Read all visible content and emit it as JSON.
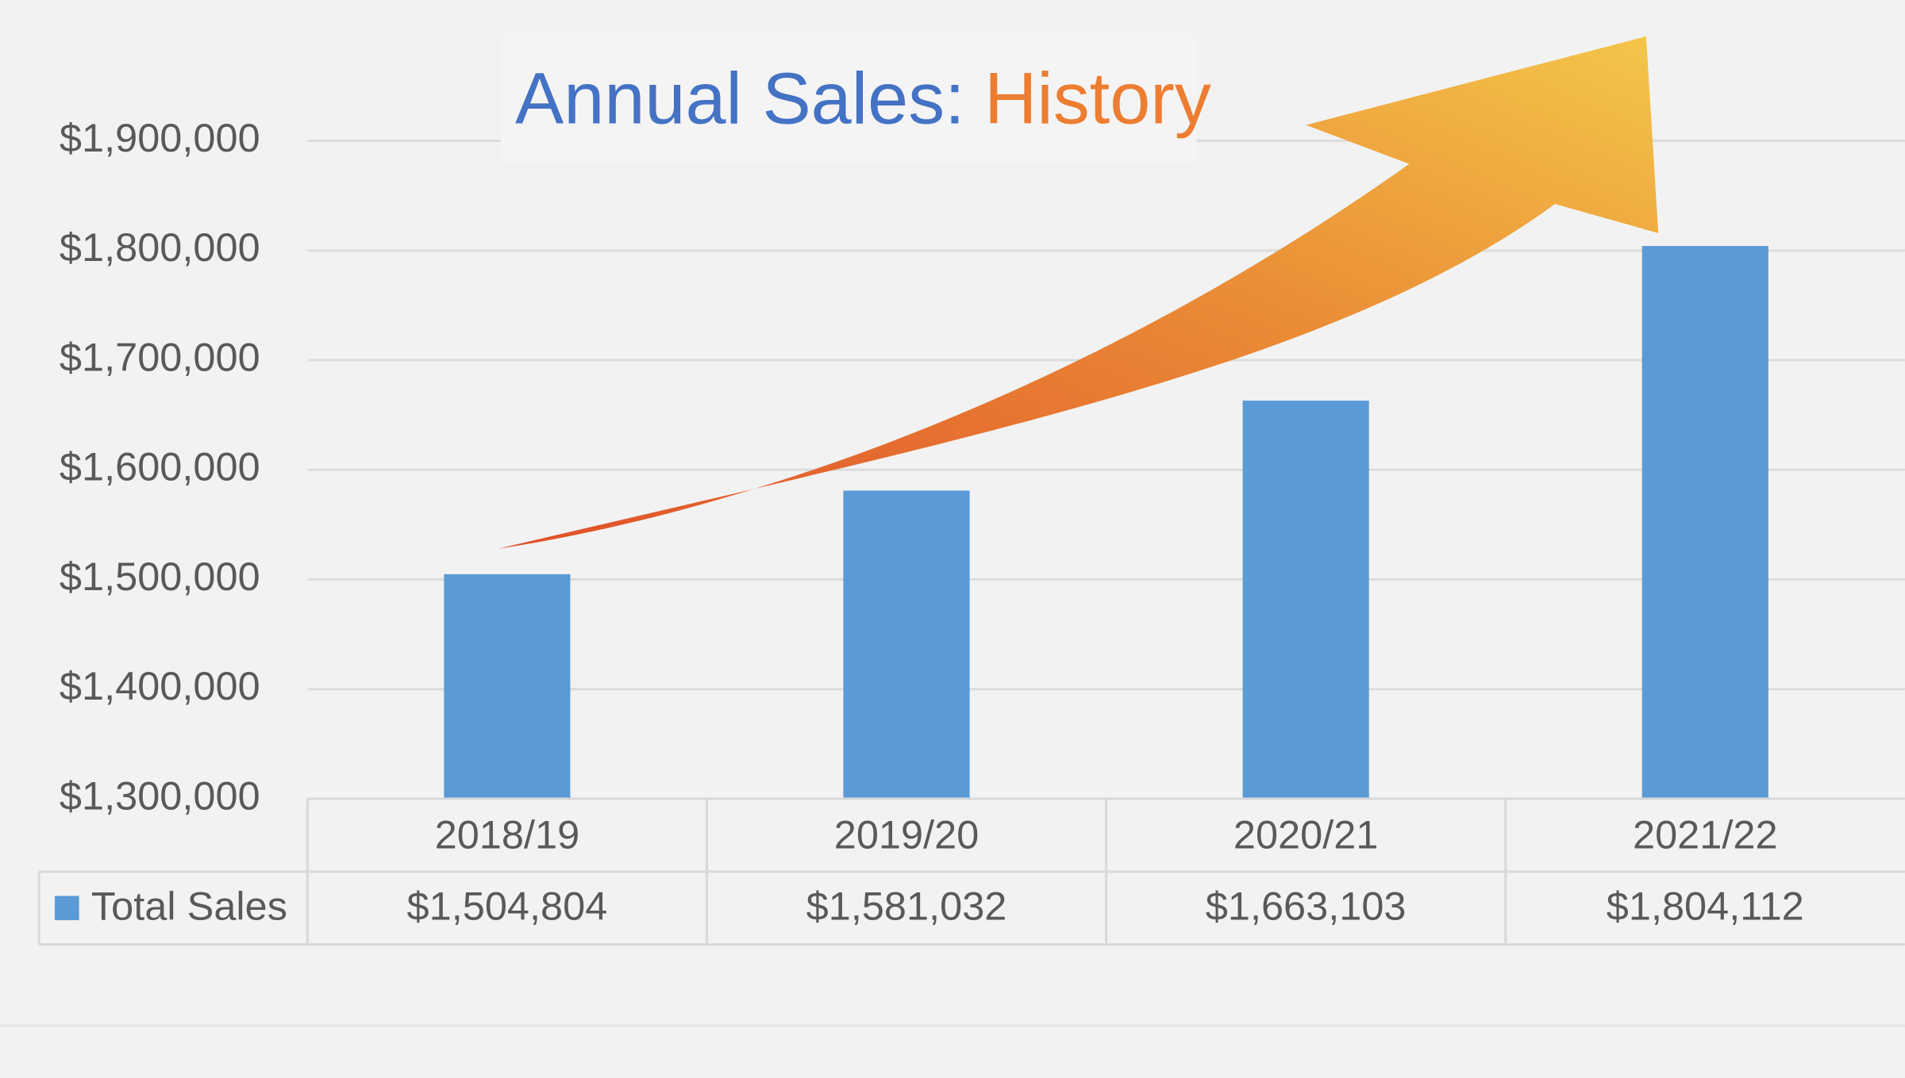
{
  "chart_data": {
    "type": "bar",
    "title_parts": [
      {
        "text": "Annual Sales:",
        "color": "#4472c4"
      },
      {
        "text": "History",
        "color": "#ed7d31"
      }
    ],
    "categories": [
      "2018/19",
      "2019/20",
      "2020/21",
      "2021/22"
    ],
    "series": [
      {
        "name": "Total Sales",
        "color": "#5b9bd5",
        "values": [
          1504804,
          1581032,
          1663103,
          1804112
        ],
        "value_labels": [
          "$1,504,804",
          "$1,581,032",
          "$1,663,103",
          "$1,804,112"
        ]
      }
    ],
    "ylim": [
      1300000,
      1900000
    ],
    "yticks": [
      {
        "value": 1300000,
        "label": "$1,300,000"
      },
      {
        "value": 1400000,
        "label": "$1,400,000"
      },
      {
        "value": 1500000,
        "label": "$1,500,000"
      },
      {
        "value": 1600000,
        "label": "$1,600,000"
      },
      {
        "value": 1700000,
        "label": "$1,700,000"
      },
      {
        "value": 1800000,
        "label": "$1,800,000"
      },
      {
        "value": 1900000,
        "label": "$1,900,000"
      }
    ],
    "grid": true,
    "data_table": true
  }
}
